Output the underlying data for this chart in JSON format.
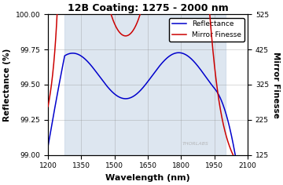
{
  "title": "12B Coating: 1275 - 2000 nm",
  "xlabel": "Wavelength (nm)",
  "ylabel_left": "Reflectance (%)",
  "ylabel_right": "Mirror Finesse",
  "xlim": [
    1200,
    2100
  ],
  "ylim_left": [
    99.0,
    100.0
  ],
  "ylim_right": [
    125,
    525
  ],
  "xticks": [
    1200,
    1350,
    1500,
    1650,
    1800,
    1950,
    2100
  ],
  "yticks_left": [
    99.0,
    99.25,
    99.5,
    99.75,
    100.0
  ],
  "yticks_right": [
    125,
    225,
    325,
    425,
    525
  ],
  "shaded_region": [
    1275,
    2000
  ],
  "bg_color": "#ccd9e8",
  "line_color_reflectance": "#0000cc",
  "line_color_finesse": "#cc0000",
  "legend_labels": [
    "Reflectance",
    "Mirror Finesse"
  ],
  "watermark": "THORLABS"
}
